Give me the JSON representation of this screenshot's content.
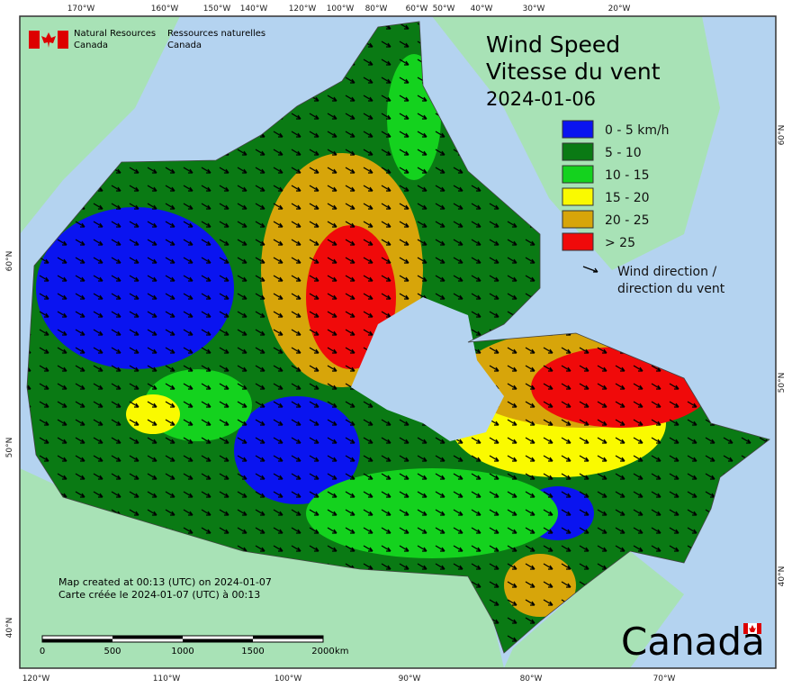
{
  "header": {
    "en_line1": "Natural Resources",
    "en_line2": "Canada",
    "fr_line1": "Ressources naturelles",
    "fr_line2": "Canada"
  },
  "title": {
    "line1": "Wind Speed",
    "line2": "Vitesse du vent",
    "date": "2024-01-06"
  },
  "legend": {
    "items": [
      {
        "label": "0 - 5 km/h",
        "color": "#0a14f0"
      },
      {
        "label": "5 - 10",
        "color": "#0a7a14"
      },
      {
        "label": "10 - 15",
        "color": "#14d21e"
      },
      {
        "label": "15 - 20",
        "color": "#fafa00"
      },
      {
        "label": "20 - 25",
        "color": "#d7a50a"
      },
      {
        "label": "> 25",
        "color": "#f00a0a"
      }
    ],
    "direction_line1": "Wind direction /",
    "direction_line2": "direction du vent"
  },
  "footer": {
    "en": "Map created at 00:13 (UTC) on 2024-01-07",
    "fr": "Carte créée le 2024-01-07 (UTC) à 00:13"
  },
  "scale": {
    "labels": [
      "0",
      "500",
      "1000",
      "1500",
      "2000"
    ],
    "unit": "km"
  },
  "graticule": {
    "top": [
      "170°W",
      "160°W",
      "150°W",
      "140°W",
      "120°W",
      "100°W",
      "80°W",
      "60°W",
      "50°W",
      "40°W",
      "30°W",
      "20°W"
    ],
    "bottom": [
      "120°W",
      "110°W",
      "100°W",
      "90°W",
      "80°W",
      "70°W"
    ],
    "left": [
      "60°N",
      "50°N",
      "40°N"
    ],
    "right": [
      "60°N",
      "50°N",
      "40°N"
    ]
  },
  "wordmark": "Canada"
}
